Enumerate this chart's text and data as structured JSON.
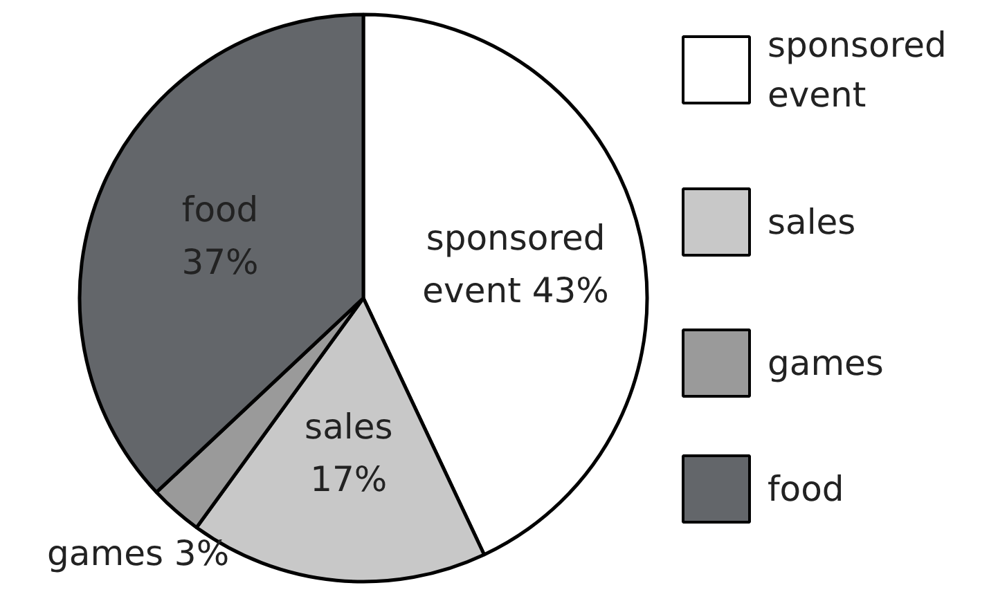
{
  "chart_data": {
    "type": "pie",
    "categories": [
      "sponsored event",
      "sales",
      "games",
      "food"
    ],
    "values": [
      43,
      17,
      3,
      37
    ],
    "colors": [
      "#ffffff",
      "#c8c8c8",
      "#9a9a9a",
      "#63666a"
    ],
    "value_labels": [
      "sponsored\nevent 43%",
      "sales\n17%",
      "games 3%",
      "food\n37%"
    ],
    "legend": "right"
  }
}
